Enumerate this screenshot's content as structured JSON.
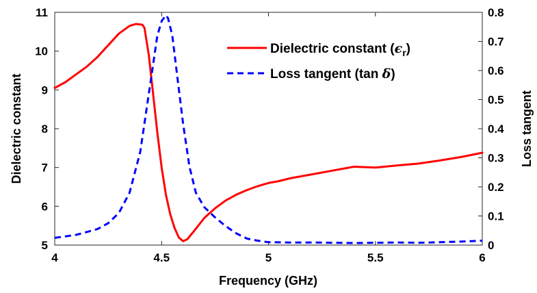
{
  "chart_data": {
    "type": "line",
    "xlabel": "Frequency (GHz)",
    "ylabel_left": "Dielectric constant",
    "ylabel_right": "Loss tangent",
    "xlim": [
      4,
      6
    ],
    "ylim_left": [
      5,
      11
    ],
    "ylim_right": [
      0,
      0.8
    ],
    "x_ticks": [
      "4",
      "4.5",
      "5",
      "5.5",
      "6"
    ],
    "y_left_ticks": [
      "5",
      "6",
      "7",
      "8",
      "9",
      "10",
      "11"
    ],
    "y_right_ticks": [
      "0",
      "0.1",
      "0.2",
      "0.3",
      "0.4",
      "0.5",
      "0.6",
      "0.7",
      "0.8"
    ],
    "grid": false,
    "legend_position": "top-right",
    "series": [
      {
        "name": "Dielectric constant (εr)",
        "axis": "left",
        "color": "#ff0000",
        "style": "solid",
        "x": [
          4.0,
          4.05,
          4.1,
          4.15,
          4.2,
          4.25,
          4.3,
          4.35,
          4.38,
          4.41,
          4.42,
          4.44,
          4.46,
          4.48,
          4.5,
          4.52,
          4.54,
          4.56,
          4.58,
          4.6,
          4.62,
          4.65,
          4.7,
          4.75,
          4.8,
          4.85,
          4.9,
          4.95,
          5.0,
          5.05,
          5.1,
          5.2,
          5.3,
          5.4,
          5.5,
          5.6,
          5.7,
          5.8,
          5.9,
          6.0
        ],
        "values": [
          9.05,
          9.2,
          9.4,
          9.6,
          9.85,
          10.15,
          10.45,
          10.65,
          10.7,
          10.68,
          10.6,
          9.9,
          8.9,
          7.9,
          7.0,
          6.3,
          5.8,
          5.45,
          5.2,
          5.1,
          5.15,
          5.35,
          5.7,
          5.95,
          6.15,
          6.3,
          6.42,
          6.52,
          6.6,
          6.65,
          6.72,
          6.82,
          6.92,
          7.02,
          7.0,
          7.05,
          7.1,
          7.18,
          7.27,
          7.38
        ]
      },
      {
        "name": "Loss tangent (tan δ)",
        "axis": "right",
        "color": "#0000ff",
        "style": "dashed",
        "x": [
          4.0,
          4.05,
          4.1,
          4.15,
          4.2,
          4.25,
          4.3,
          4.35,
          4.4,
          4.43,
          4.46,
          4.48,
          4.5,
          4.52,
          4.53,
          4.55,
          4.57,
          4.6,
          4.63,
          4.66,
          4.7,
          4.75,
          4.8,
          4.85,
          4.9,
          4.95,
          5.0,
          5.1,
          5.2,
          5.3,
          5.4,
          5.5,
          5.6,
          5.7,
          5.8,
          5.9,
          6.0
        ],
        "values": [
          0.025,
          0.03,
          0.035,
          0.045,
          0.055,
          0.075,
          0.11,
          0.18,
          0.32,
          0.47,
          0.62,
          0.72,
          0.77,
          0.79,
          0.78,
          0.72,
          0.6,
          0.42,
          0.27,
          0.18,
          0.13,
          0.095,
          0.065,
          0.04,
          0.022,
          0.015,
          0.01,
          0.009,
          0.009,
          0.008,
          0.007,
          0.008,
          0.009,
          0.008,
          0.01,
          0.012,
          0.015
        ]
      }
    ]
  }
}
